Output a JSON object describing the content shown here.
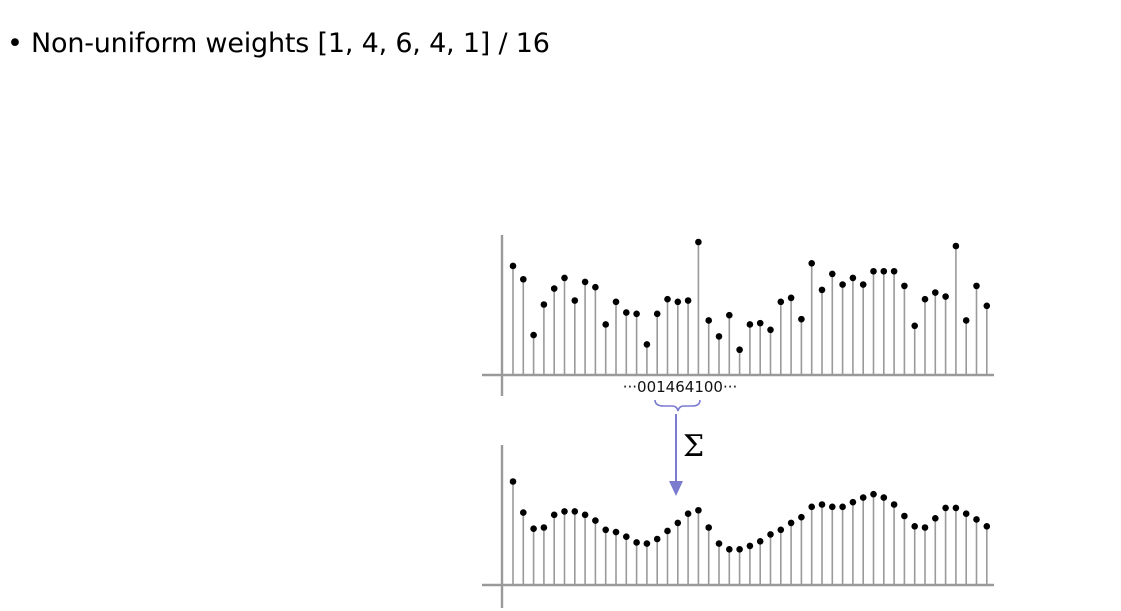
{
  "bullet": {
    "marker": "•",
    "text": "Non-uniform weights [1, 4, 6, 4, 1] / 16"
  },
  "kernel_label": "···001464100···",
  "sum_symbol": "Σ",
  "colors": {
    "stem": "#9a9a9a",
    "point": "#000000",
    "arrow": "#7b7bd0"
  },
  "input_signal": [
    0.82,
    0.72,
    0.3,
    0.53,
    0.65,
    0.73,
    0.56,
    0.7,
    0.66,
    0.38,
    0.55,
    0.47,
    0.46,
    0.23,
    0.46,
    0.57,
    0.55,
    0.56,
    1.0,
    0.41,
    0.29,
    0.45,
    0.19,
    0.38,
    0.39,
    0.34,
    0.55,
    0.58,
    0.42,
    0.84,
    0.64,
    0.76,
    0.68,
    0.73,
    0.68,
    0.78,
    0.78,
    0.78,
    0.67,
    0.37,
    0.57,
    0.62,
    0.59,
    0.97,
    0.41,
    0.67,
    0.52
  ],
  "output_signal": [
    0.9,
    0.63,
    0.49,
    0.5,
    0.61,
    0.64,
    0.64,
    0.61,
    0.56,
    0.48,
    0.46,
    0.42,
    0.37,
    0.36,
    0.4,
    0.47,
    0.54,
    0.62,
    0.65,
    0.5,
    0.36,
    0.31,
    0.31,
    0.34,
    0.38,
    0.44,
    0.48,
    0.54,
    0.59,
    0.68,
    0.7,
    0.68,
    0.68,
    0.72,
    0.76,
    0.79,
    0.76,
    0.7,
    0.6,
    0.51,
    0.5,
    0.58,
    0.67,
    0.67,
    0.62,
    0.57,
    0.51
  ]
}
